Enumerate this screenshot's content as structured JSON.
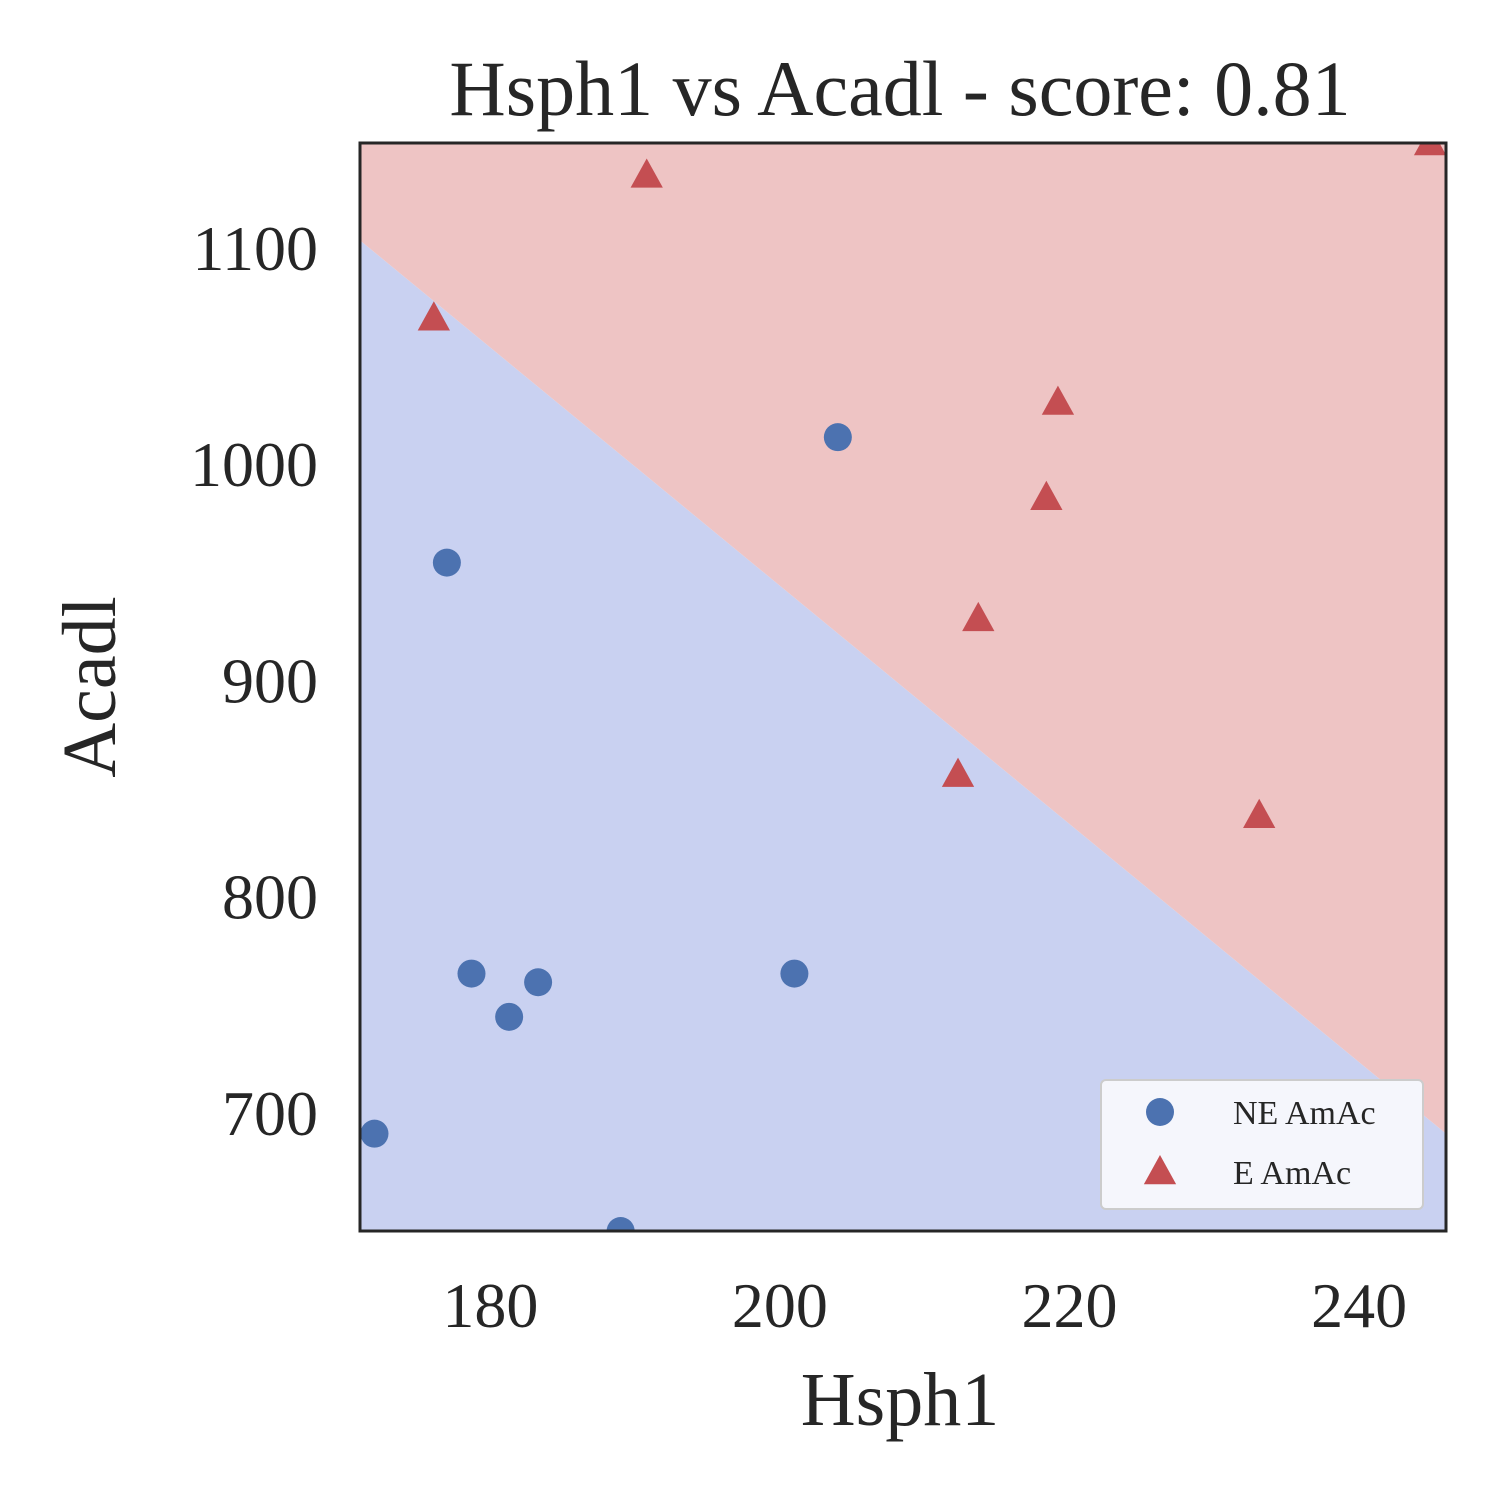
{
  "chart_data": {
    "type": "scatter",
    "title": "Hsph1 vs Acadl - score: 0.81",
    "xlabel": "Hsph1",
    "ylabel": "Acadl",
    "xlim": [
      171,
      246
    ],
    "ylim": [
      645,
      1148
    ],
    "xticks": [
      180,
      200,
      220,
      240
    ],
    "yticks": [
      700,
      800,
      900,
      1000,
      1100
    ],
    "grid": false,
    "legend_position": "bottom-right",
    "decision_boundary": {
      "points": [
        [
          171,
          1103
        ],
        [
          246,
          690
        ]
      ],
      "region_below_color": "#c9d1f1",
      "region_above_color": "#eec4c4"
    },
    "series": [
      {
        "name": "NE AmAc",
        "marker": "circle",
        "color": "#4c72b0",
        "points": [
          [
            172,
            690
          ],
          [
            177,
            954
          ],
          [
            178.7,
            764
          ],
          [
            181.3,
            744
          ],
          [
            183.3,
            760
          ],
          [
            189,
            645
          ],
          [
            201,
            764
          ],
          [
            204,
            1012
          ]
        ]
      },
      {
        "name": "E AmAc",
        "marker": "triangle",
        "color": "#c44e52",
        "points": [
          [
            190.8,
            1133
          ],
          [
            176.1,
            1067
          ],
          [
            219.2,
            1028
          ],
          [
            218.4,
            984
          ],
          [
            213.7,
            928
          ],
          [
            212.3,
            856
          ],
          [
            233.1,
            837
          ],
          [
            244.9,
            1148
          ]
        ]
      }
    ]
  }
}
